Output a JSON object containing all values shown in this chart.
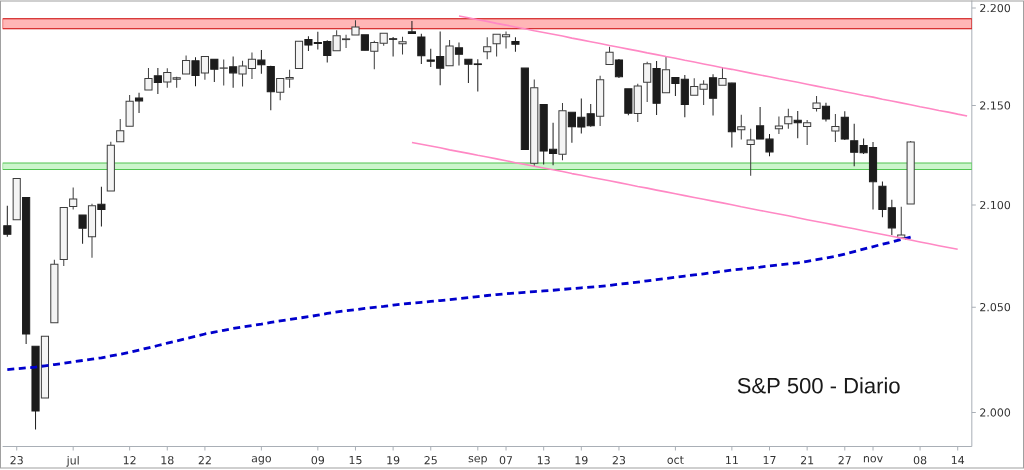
{
  "chart_data": {
    "type": "candlestick",
    "title": "S&P 500 - Diario",
    "categories": [
      null,
      "23",
      null,
      null,
      null,
      null,
      null,
      "jul",
      null,
      null,
      null,
      null,
      null,
      "12",
      null,
      null,
      null,
      "18",
      null,
      null,
      null,
      "22",
      null,
      null,
      null,
      null,
      null,
      "ago",
      null,
      null,
      null,
      null,
      null,
      "09",
      null,
      null,
      null,
      "15",
      null,
      null,
      null,
      "19",
      null,
      null,
      null,
      "25",
      null,
      null,
      null,
      null,
      "sep",
      null,
      null,
      "07",
      null,
      null,
      null,
      "13",
      null,
      null,
      null,
      "19",
      null,
      null,
      null,
      "23",
      null,
      null,
      null,
      null,
      null,
      "oct",
      null,
      null,
      null,
      null,
      null,
      "11",
      null,
      null,
      null,
      "17",
      null,
      null,
      null,
      "21",
      null,
      null,
      null,
      "27",
      null,
      null,
      "nov",
      null,
      null,
      null,
      null,
      "08",
      null,
      null,
      null,
      "14",
      null
    ],
    "ohlc": [
      [
        2089.8,
        2099.7,
        2084.4,
        2085.5
      ],
      [
        2092.8,
        2113.3,
        2092.8,
        2113.3
      ],
      [
        2103.8,
        2103.8,
        2032.6,
        2037.4
      ],
      [
        2031.5,
        2031.5,
        1991.7,
        2000.5
      ],
      [
        2006.7,
        2036.1,
        2006.7,
        2036.1
      ],
      [
        2042.7,
        2073.1,
        2042.7,
        2070.8
      ],
      [
        2073.2,
        2098.9,
        2070.0,
        2098.9
      ],
      [
        2099.3,
        2108.7,
        2097.9,
        2103.0
      ],
      [
        2095.1,
        2095.1,
        2080.9,
        2088.6
      ],
      [
        2084.4,
        2100.7,
        2074.0,
        2099.7
      ],
      [
        2100.4,
        2109.1,
        2089.4,
        2097.9
      ],
      [
        2107.0,
        2131.7,
        2107.0,
        2129.9
      ],
      [
        2131.7,
        2143.2,
        2131.7,
        2137.2
      ],
      [
        2139.5,
        2155.4,
        2139.5,
        2152.1
      ],
      [
        2153.8,
        2156.5,
        2146.2,
        2152.4
      ],
      [
        2157.9,
        2169.1,
        2157.9,
        2163.8
      ],
      [
        2165.1,
        2169.1,
        2155.8,
        2161.7
      ],
      [
        2162.0,
        2169.0,
        2159.1,
        2166.9
      ],
      [
        2163.8,
        2164.6,
        2159.0,
        2163.8
      ],
      [
        2166.1,
        2175.6,
        2166.1,
        2173.0
      ],
      [
        2172.9,
        2174.6,
        2159.8,
        2165.2
      ],
      [
        2166.5,
        2175.1,
        2163.2,
        2175.0
      ],
      [
        2173.7,
        2173.7,
        2162.0,
        2168.5
      ],
      [
        2169.0,
        2173.5,
        2160.2,
        2169.2
      ],
      [
        2169.8,
        2175.0,
        2159.1,
        2166.6
      ],
      [
        2166.1,
        2172.9,
        2159.7,
        2170.1
      ],
      [
        2168.8,
        2177.1,
        2163.5,
        2173.6
      ],
      [
        2173.2,
        2178.3,
        2166.2,
        2170.8
      ],
      [
        2169.9,
        2170.2,
        2147.6,
        2157.0
      ],
      [
        2156.8,
        2163.8,
        2152.7,
        2163.8
      ],
      [
        2163.5,
        2168.2,
        2159.1,
        2164.3
      ],
      [
        2168.8,
        2182.9,
        2168.8,
        2182.9
      ],
      [
        2183.8,
        2185.4,
        2177.9,
        2180.9
      ],
      [
        2182.2,
        2187.7,
        2178.6,
        2181.7
      ],
      [
        2182.8,
        2183.4,
        2172.0,
        2175.5
      ],
      [
        2178.0,
        2188.5,
        2178.0,
        2185.8
      ],
      [
        2183.7,
        2186.3,
        2179.4,
        2184.1
      ],
      [
        2186.1,
        2193.8,
        2186.1,
        2190.2
      ],
      [
        2186.2,
        2186.2,
        2178.1,
        2178.2
      ],
      [
        2177.8,
        2183.1,
        2168.5,
        2182.2
      ],
      [
        2181.9,
        2187.0,
        2180.5,
        2187.0
      ],
      [
        2184.2,
        2185.0,
        2175.1,
        2183.9
      ],
      [
        2181.6,
        2185.2,
        2176.0,
        2182.6
      ],
      [
        2187.8,
        2193.4,
        2186.8,
        2186.9
      ],
      [
        2185.1,
        2186.7,
        2171.3,
        2175.4
      ],
      [
        2173.3,
        2179.0,
        2169.7,
        2172.5
      ],
      [
        2175.1,
        2187.9,
        2160.4,
        2169.0
      ],
      [
        2170.2,
        2183.5,
        2170.2,
        2180.4
      ],
      [
        2179.5,
        2182.3,
        2170.4,
        2176.1
      ],
      [
        2173.6,
        2173.8,
        2161.4,
        2171.0
      ],
      [
        2171.3,
        2173.6,
        2157.1,
        2170.9
      ],
      [
        2177.5,
        2184.9,
        2173.6,
        2180.0
      ],
      [
        2181.6,
        2186.6,
        2175.1,
        2186.5
      ],
      [
        2185.2,
        2187.9,
        2179.1,
        2186.2
      ],
      [
        2182.8,
        2184.9,
        2177.5,
        2181.3
      ],
      [
        2169.1,
        2169.1,
        2127.8,
        2127.8
      ],
      [
        2120.9,
        2163.3,
        2119.1,
        2159.0
      ],
      [
        2150.5,
        2150.5,
        2120.3,
        2127.0
      ],
      [
        2127.9,
        2141.3,
        2119.9,
        2125.8
      ],
      [
        2125.4,
        2151.3,
        2122.4,
        2147.3
      ],
      [
        2146.5,
        2146.5,
        2131.2,
        2139.2
      ],
      [
        2144.0,
        2153.6,
        2135.9,
        2139.1
      ],
      [
        2145.9,
        2150.8,
        2139.2,
        2139.8
      ],
      [
        2144.6,
        2165.1,
        2139.6,
        2163.1
      ],
      [
        2170.9,
        2180.0,
        2170.9,
        2177.2
      ],
      [
        2173.3,
        2173.8,
        2164.0,
        2164.7
      ],
      [
        2158.5,
        2158.5,
        2145.0,
        2146.1
      ],
      [
        2146.0,
        2161.1,
        2141.6,
        2159.9
      ],
      [
        2161.9,
        2172.4,
        2151.8,
        2171.4
      ],
      [
        2168.9,
        2172.7,
        2145.2,
        2151.1
      ],
      [
        2156.5,
        2175.3,
        2156.5,
        2168.3
      ],
      [
        2164.3,
        2164.3,
        2154.8,
        2161.2
      ],
      [
        2163.4,
        2165.5,
        2144.0,
        2150.5
      ],
      [
        2155.2,
        2163.9,
        2155.2,
        2159.7
      ],
      [
        2158.2,
        2162.9,
        2150.3,
        2160.8
      ],
      [
        2164.2,
        2165.9,
        2144.9,
        2153.7
      ],
      [
        2160.4,
        2169.6,
        2160.4,
        2163.7
      ],
      [
        2161.4,
        2161.6,
        2128.8,
        2136.7
      ],
      [
        2137.7,
        2145.4,
        2132.8,
        2139.2
      ],
      [
        2130.3,
        2138.2,
        2114.7,
        2132.6
      ],
      [
        2139.7,
        2149.2,
        2133.0,
        2133.0
      ],
      [
        2133.0,
        2135.6,
        2124.4,
        2126.5
      ],
      [
        2138.3,
        2144.4,
        2135.5,
        2139.6
      ],
      [
        2140.8,
        2148.4,
        2138.2,
        2144.3
      ],
      [
        2142.5,
        2147.2,
        2133.4,
        2141.3
      ],
      [
        2139.4,
        2142.6,
        2130.1,
        2141.2
      ],
      [
        2148.5,
        2154.8,
        2146.9,
        2151.3
      ],
      [
        2149.7,
        2151.4,
        2141.9,
        2143.2
      ],
      [
        2137.0,
        2145.7,
        2131.6,
        2139.4
      ],
      [
        2144.1,
        2147.1,
        2132.5,
        2133.0
      ],
      [
        2132.2,
        2140.7,
        2119.4,
        2126.4
      ],
      [
        2129.8,
        2133.3,
        2125.5,
        2126.2
      ],
      [
        2128.7,
        2131.5,
        2097.9,
        2111.7
      ],
      [
        2109.4,
        2111.8,
        2094.0,
        2097.9
      ],
      [
        2098.8,
        2102.6,
        2085.2,
        2088.7
      ],
      [
        2083.8,
        2099.1,
        2083.8,
        2085.2
      ],
      [
        2100.6,
        2132.0,
        2100.6,
        2131.5
      ],
      null,
      null,
      null,
      null,
      null,
      null
    ],
    "series": [
      {
        "type": "line",
        "color": "#0000cc",
        "line_style": "dashed",
        "values": [
          2020.0,
          2020.4,
          2020.8,
          2021.2,
          2021.8,
          2022.4,
          2023.0,
          2023.7,
          2024.3,
          2025.0,
          2025.6,
          2026.5,
          2027.3,
          2028.2,
          2029.3,
          2030.4,
          2031.5,
          2032.6,
          2033.7,
          2034.8,
          2035.9,
          2037.0,
          2037.9,
          2038.8,
          2039.7,
          2040.4,
          2041.1,
          2041.8,
          2042.6,
          2043.3,
          2044.0,
          2044.7,
          2045.4,
          2046.1,
          2046.9,
          2047.6,
          2048.3,
          2048.8,
          2049.4,
          2049.9,
          2050.4,
          2051.0,
          2051.5,
          2051.9,
          2052.3,
          2052.8,
          2053.2,
          2053.6,
          2054.1,
          2054.6,
          2055.1,
          2055.6,
          2056.1,
          2056.5,
          2056.8,
          2057.2,
          2057.5,
          2057.9,
          2058.2,
          2058.6,
          2059.0,
          2059.4,
          2059.7,
          2060.1,
          2060.5,
          2061.1,
          2061.6,
          2062.2,
          2062.8,
          2063.3,
          2063.9,
          2064.5,
          2065.1,
          2065.7,
          2066.2,
          2066.8,
          2067.4,
          2068.0,
          2068.5,
          2069.0,
          2069.5,
          2070.0,
          2070.5,
          2071.0,
          2071.5,
          2072.3,
          2073.1,
          2073.9,
          2074.7,
          2075.9,
          2077.1,
          2078.3,
          2079.5,
          2080.7,
          2081.8,
          2083.0,
          2084.2,
          null,
          null,
          null,
          null,
          null,
          null
        ]
      },
      {
        "type": "line",
        "color": "#ff88c4",
        "line_style": "solid",
        "values": [
          null,
          null,
          null,
          null,
          null,
          null,
          null,
          null,
          null,
          null,
          null,
          null,
          null,
          null,
          null,
          null,
          null,
          null,
          null,
          null,
          null,
          null,
          null,
          null,
          null,
          null,
          null,
          null,
          null,
          null,
          null,
          null,
          null,
          null,
          null,
          null,
          null,
          null,
          null,
          null,
          null,
          null,
          null,
          null,
          null,
          null,
          null,
          null,
          2195.9,
          2195.0,
          2194.0,
          2193.1,
          2192.1,
          2191.2,
          2190.2,
          2189.3,
          2188.3,
          2187.4,
          2186.4,
          2185.5,
          2184.5,
          2183.6,
          2182.6,
          2181.7,
          2180.7,
          2179.8,
          2178.8,
          2177.9,
          2176.9,
          2176.0,
          2175.0,
          2174.1,
          2173.1,
          2172.2,
          2171.2,
          2170.3,
          2169.3,
          2168.4,
          2167.5,
          2166.5,
          2165.6,
          2164.6,
          2163.6,
          2162.7,
          2161.8,
          2160.8,
          2159.9,
          2158.9,
          2158.0,
          2157.0,
          2156.1,
          2155.1,
          2154.2,
          2153.2,
          2152.3,
          2151.3,
          2150.4,
          2149.4,
          2148.5,
          2147.5,
          2146.6,
          2145.6,
          2144.7
        ]
      },
      {
        "type": "line",
        "color": "#ff88c4",
        "line_style": "solid",
        "values": [
          null,
          null,
          null,
          null,
          null,
          null,
          null,
          null,
          null,
          null,
          null,
          null,
          null,
          null,
          null,
          null,
          null,
          null,
          null,
          null,
          null,
          null,
          null,
          null,
          null,
          null,
          null,
          null,
          null,
          null,
          null,
          null,
          null,
          null,
          null,
          null,
          null,
          null,
          null,
          null,
          null,
          null,
          null,
          2131.3,
          2130.4,
          2129.5,
          2128.6,
          2127.6,
          2126.7,
          2125.8,
          2124.9,
          2124.0,
          2123.1,
          2122.1,
          2121.2,
          2120.3,
          2119.4,
          2118.5,
          2117.6,
          2116.7,
          2115.7,
          2114.8,
          2113.9,
          2113.0,
          2112.1,
          2111.2,
          2110.2,
          2109.3,
          2108.4,
          2107.5,
          2106.6,
          2105.7,
          2104.7,
          2103.8,
          2102.9,
          2102.0,
          2101.1,
          2100.2,
          2099.2,
          2098.3,
          2097.4,
          2096.5,
          2095.6,
          2094.7,
          2093.7,
          2092.8,
          2091.9,
          2091.0,
          2090.1,
          2089.2,
          2088.3,
          2087.3,
          2086.4,
          2085.5,
          2084.6,
          2083.7,
          2082.8,
          2081.8,
          2080.9,
          2080.0,
          2079.1,
          2078.2,
          null
        ]
      }
    ],
    "bands": [
      {
        "axis": "y",
        "from": 2189.3,
        "to": 2194.5,
        "color": "#ffb6b6"
      },
      {
        "axis": "y",
        "from": 2117.7,
        "to": 2121.0,
        "color": "#ccf5cc"
      }
    ],
    "log": "y",
    "ylim": [
      1984,
      2204
    ],
    "yticks": [
      {
        "value": 2000,
        "label": "2.000"
      },
      {
        "value": 2050,
        "label": "2.050"
      },
      {
        "value": 2100,
        "label": "2.100"
      },
      {
        "value": 2150,
        "label": "2.150"
      },
      {
        "value": 2200,
        "label": "2.200"
      }
    ]
  }
}
